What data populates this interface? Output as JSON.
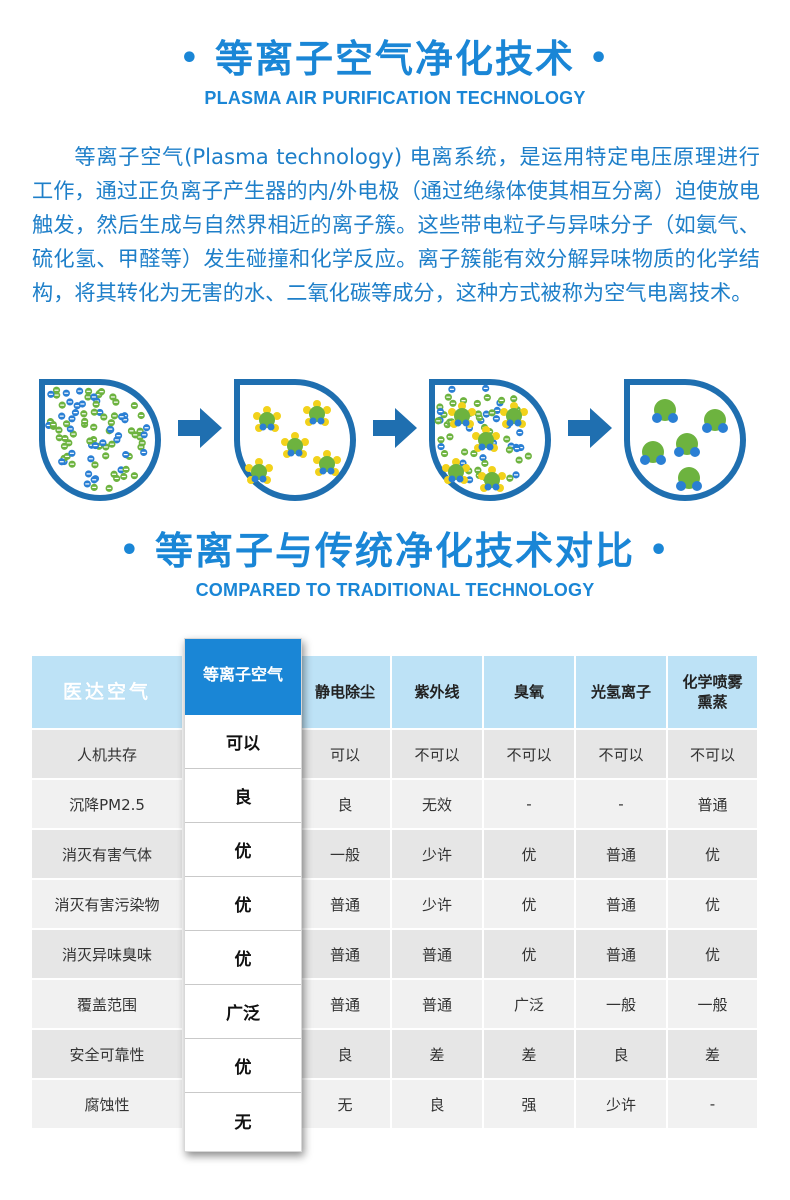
{
  "section1": {
    "title_cn": "等离子空气净化技术",
    "title_en": "PLASMA AIR PURIFICATION TECHNOLOGY",
    "bullet": "•",
    "intro": "等离子空气(Plasma technology) 电离系统，是运用特定电压原理进行工作，通过正负离子产生器的内/外电极（通过绝缘体使其相互分离）迫使放电触发，然后生成与自然界相近的离子簇。这些带电粒子与异味分子（如氨气、硫化氢、甲醛等）发生碰撞和化学反应。离子簇能有效分解异味物质的化学结构，将其转化为无害的水、二氧化碳等成分，这种方式被称为空气电离技术。"
  },
  "section2": {
    "title_cn": "等离子与传统净化技术对比",
    "title_en": "COMPARED TO TRADITIONAL TECHNOLOGY",
    "bullet": "•"
  },
  "colors": {
    "accent": "#1a86d6",
    "header_bg": "#bde2f6",
    "row_dark": "#e6e6e6",
    "row_light": "#f1f1f1",
    "arrow": "#1f6fb0",
    "ion_green": "#6db33f",
    "ion_blue": "#2a7fd4",
    "ion_yellow": "#f2d21b"
  },
  "table": {
    "brand": "医达空气",
    "highlight_header": "等离子空气",
    "columns": [
      "静电除尘",
      "紫外线",
      "臭氧",
      "光氢离子",
      "化学喷雾\n熏蒸"
    ],
    "rows": [
      {
        "label": "人机共存",
        "plasma": "可以",
        "values": [
          "可以",
          "不可以",
          "不可以",
          "不可以",
          "不可以"
        ]
      },
      {
        "label": "沉降PM2.5",
        "plasma": "良",
        "values": [
          "良",
          "无效",
          "-",
          "-",
          "普通"
        ]
      },
      {
        "label": "消灭有害气体",
        "plasma": "优",
        "values": [
          "一般",
          "少许",
          "优",
          "普通",
          "优"
        ]
      },
      {
        "label": "消灭有害污染物",
        "plasma": "优",
        "values": [
          "普通",
          "少许",
          "优",
          "普通",
          "优"
        ]
      },
      {
        "label": "消灭异味臭味",
        "plasma": "优",
        "values": [
          "普通",
          "普通",
          "优",
          "普通",
          "优"
        ]
      },
      {
        "label": "覆盖范围",
        "plasma": "广泛",
        "values": [
          "普通",
          "普通",
          "广泛",
          "一般",
          "一般"
        ]
      },
      {
        "label": "安全可靠性",
        "plasma": "优",
        "values": [
          "良",
          "差",
          "差",
          "良",
          "差"
        ]
      },
      {
        "label": "腐蚀性",
        "plasma": "无",
        "values": [
          "无",
          "良",
          "强",
          "少许",
          "-"
        ]
      }
    ]
  }
}
